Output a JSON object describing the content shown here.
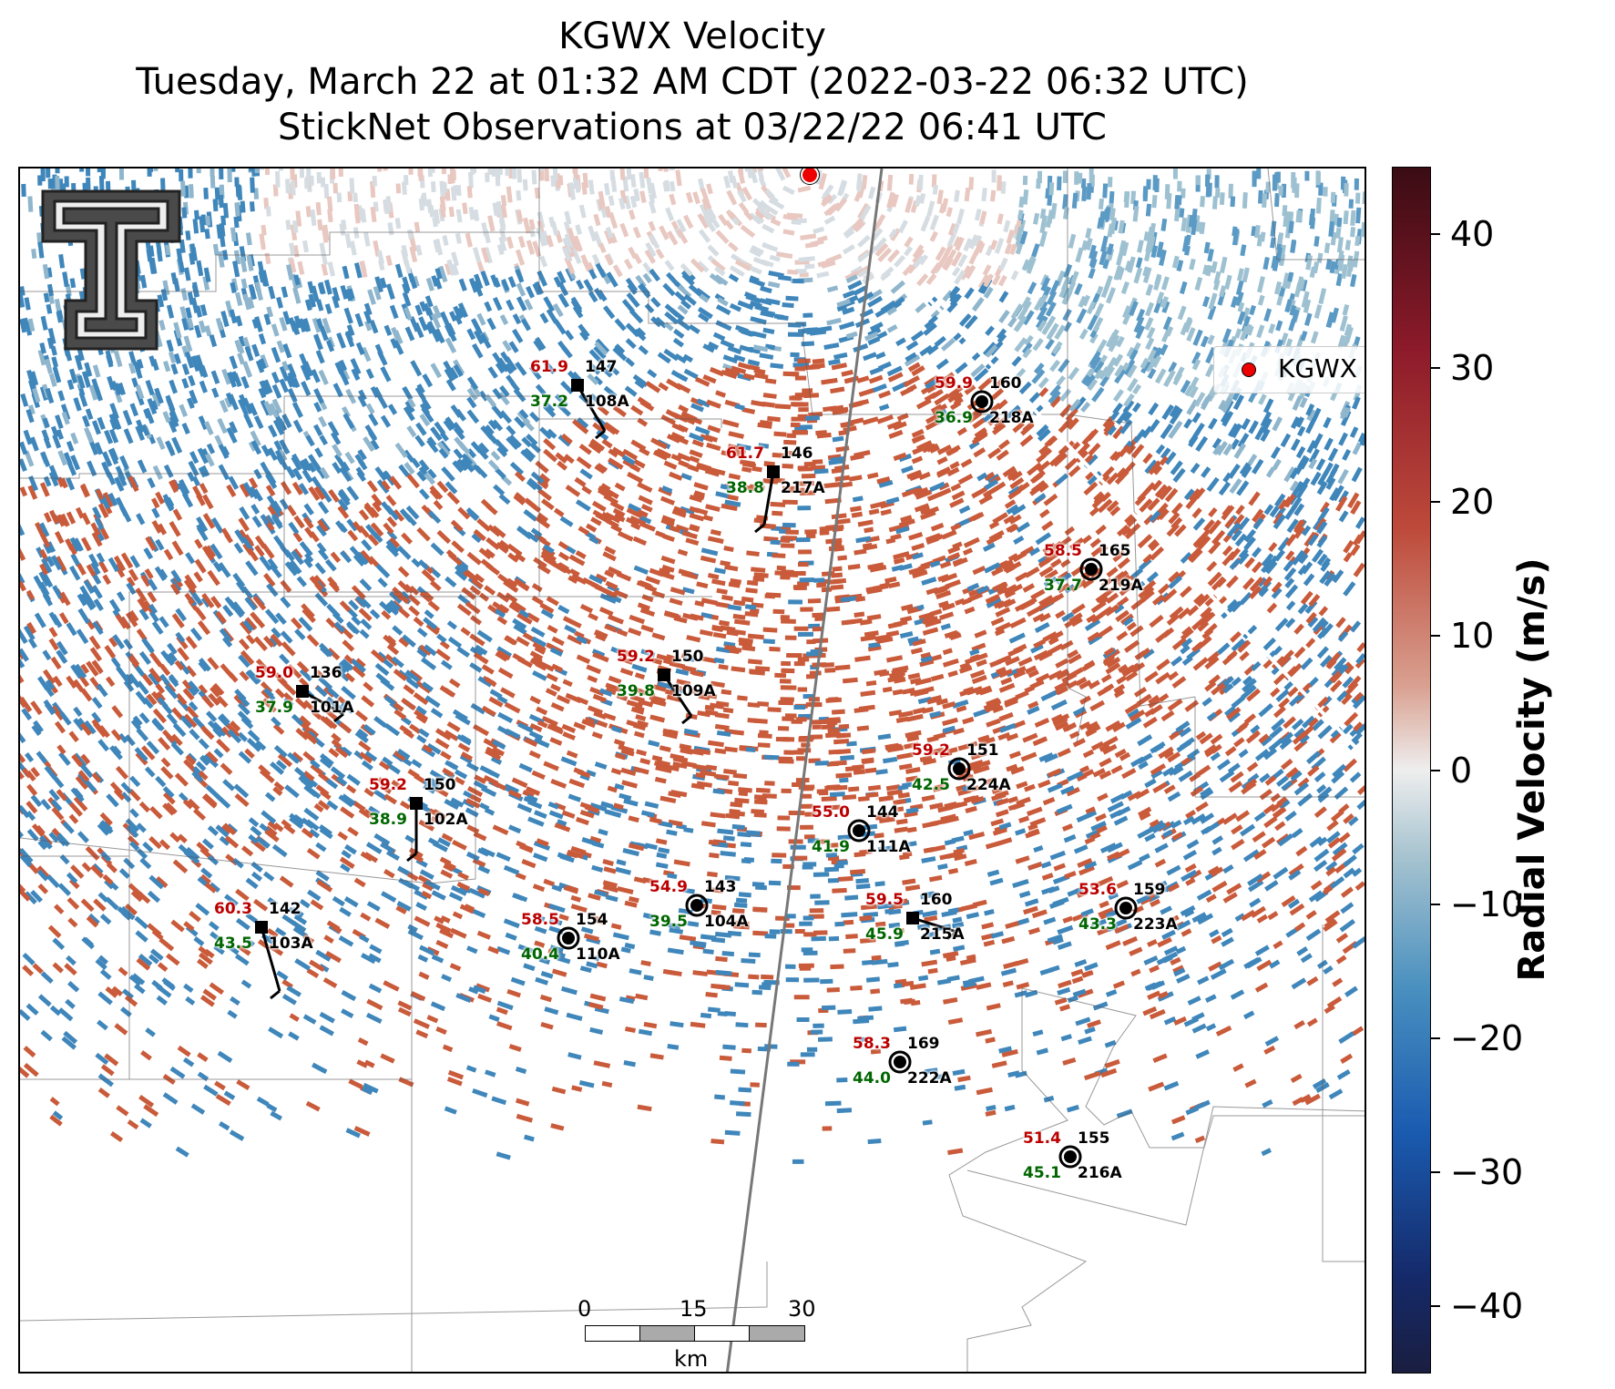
{
  "title": {
    "line1": "KGWX Velocity",
    "line2": "Tuesday, March 22 at 01:32 AM CDT (2022-03-22 06:32 UTC)",
    "line3": "StickNet Observations at 03/22/22 06:41 UTC"
  },
  "legend": {
    "label": "KGWX",
    "marker_color": "#e00000"
  },
  "colorbar": {
    "label": "Radial Velocity (m/s)",
    "ticks": [
      "40",
      "30",
      "20",
      "10",
      "0",
      "−10",
      "−20",
      "−30",
      "−40"
    ],
    "range": [
      -45,
      45
    ]
  },
  "scale_bar": {
    "labels": [
      "0",
      "15",
      "30"
    ],
    "unit": "km"
  },
  "logo": "texas-tech-double-t-logo",
  "stations": [
    {
      "id": "108A",
      "temp": "61.9",
      "dew": "37.2",
      "pres": "147",
      "marker": "square"
    },
    {
      "id": "218A",
      "temp": "59.9",
      "dew": "36.9",
      "pres": "160",
      "marker": "calm-circle"
    },
    {
      "id": "217A",
      "temp": "61.7",
      "dew": "38.8",
      "pres": "146",
      "marker": "square"
    },
    {
      "id": "219A",
      "temp": "58.5",
      "dew": "37.7",
      "pres": "165",
      "marker": "calm-circle"
    },
    {
      "id": "109A",
      "temp": "59.2",
      "dew": "39.8",
      "pres": "150",
      "marker": "square"
    },
    {
      "id": "101A",
      "temp": "59.0",
      "dew": "37.9",
      "pres": "136",
      "marker": "square"
    },
    {
      "id": "224A",
      "temp": "59.2",
      "dew": "42.5",
      "pres": "151",
      "marker": "calm-circle"
    },
    {
      "id": "102A",
      "temp": "59.2",
      "dew": "38.9",
      "pres": "150",
      "marker": "square"
    },
    {
      "id": "111A",
      "temp": "55.0",
      "dew": "41.9",
      "pres": "144",
      "marker": "calm-circle"
    },
    {
      "id": "104A",
      "temp": "54.9",
      "dew": "39.5",
      "pres": "143",
      "marker": "calm-circle"
    },
    {
      "id": "215A",
      "temp": "59.5",
      "dew": "45.9",
      "pres": "160",
      "marker": "square"
    },
    {
      "id": "223A",
      "temp": "53.6",
      "dew": "43.3",
      "pres": "159",
      "marker": "calm-circle"
    },
    {
      "id": "103A",
      "temp": "60.3",
      "dew": "43.5",
      "pres": "142",
      "marker": "square"
    },
    {
      "id": "110A",
      "temp": "58.5",
      "dew": "40.4",
      "pres": "154",
      "marker": "calm-circle"
    },
    {
      "id": "222A",
      "temp": "58.3",
      "dew": "44.0",
      "pres": "169",
      "marker": "calm-circle"
    },
    {
      "id": "216A",
      "temp": "51.4",
      "dew": "45.1",
      "pres": "155",
      "marker": "calm-circle"
    }
  ]
}
